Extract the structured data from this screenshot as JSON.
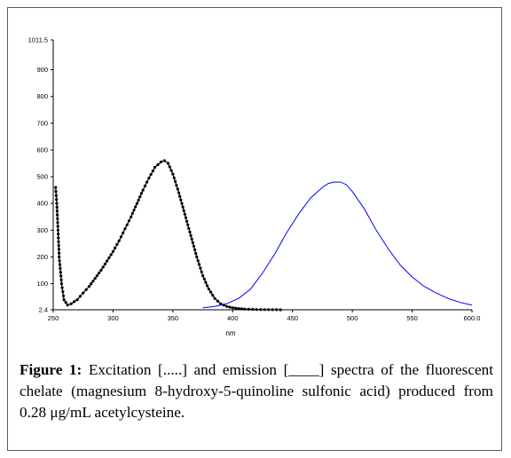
{
  "chart_data": {
    "type": "line",
    "xlabel": "nm",
    "xlim": [
      250,
      600
    ],
    "ylim": [
      2.4,
      1011.5
    ],
    "x_ticks": [
      "250",
      "300",
      "350",
      "400",
      "450",
      "500",
      "550",
      "600.0"
    ],
    "x_tick_values": [
      250,
      300,
      350,
      400,
      450,
      500,
      550,
      600
    ],
    "y_ticks": [
      "2.4",
      "100",
      "200",
      "300",
      "400",
      "500",
      "600",
      "700",
      "800",
      "900",
      "1011.5"
    ],
    "y_tick_values": [
      2.4,
      100,
      200,
      300,
      400,
      500,
      600,
      700,
      800,
      900,
      1011.5
    ],
    "grid": false,
    "series": [
      {
        "style": "dotted",
        "color": "#000000",
        "x": [
          252,
          253,
          254,
          255,
          257,
          259,
          262,
          265,
          270,
          275,
          280,
          285,
          290,
          295,
          300,
          305,
          310,
          315,
          320,
          325,
          330,
          335,
          340,
          343,
          346,
          350,
          355,
          360,
          365,
          370,
          375,
          380,
          385,
          390,
          395,
          400,
          405,
          410,
          420,
          430,
          440
        ],
        "y": [
          460,
          400,
          300,
          200,
          100,
          40,
          20,
          25,
          40,
          65,
          90,
          120,
          150,
          185,
          220,
          260,
          305,
          350,
          400,
          450,
          495,
          535,
          555,
          560,
          550,
          510,
          440,
          360,
          280,
          200,
          130,
          80,
          45,
          25,
          15,
          10,
          7,
          5,
          3.5,
          3,
          2.5
        ]
      },
      {
        "style": "solid",
        "color": "#0000ff",
        "x": [
          375,
          385,
          395,
          405,
          415,
          425,
          435,
          445,
          455,
          465,
          475,
          480,
          485,
          490,
          495,
          500,
          510,
          520,
          530,
          540,
          550,
          560,
          570,
          580,
          590,
          600
        ],
        "y": [
          10,
          15,
          25,
          45,
          80,
          140,
          210,
          290,
          360,
          420,
          460,
          475,
          480,
          480,
          470,
          445,
          380,
          300,
          230,
          170,
          125,
          90,
          65,
          45,
          30,
          20
        ]
      }
    ]
  },
  "caption": {
    "label": "Figure 1:",
    "text": " Excitation [.....] and emission [____] spectra of the fluorescent chelate (magnesium 8-hydroxy-5-quinoline sulfonic acid) produced from 0.28 μg/mL acetylcysteine."
  }
}
